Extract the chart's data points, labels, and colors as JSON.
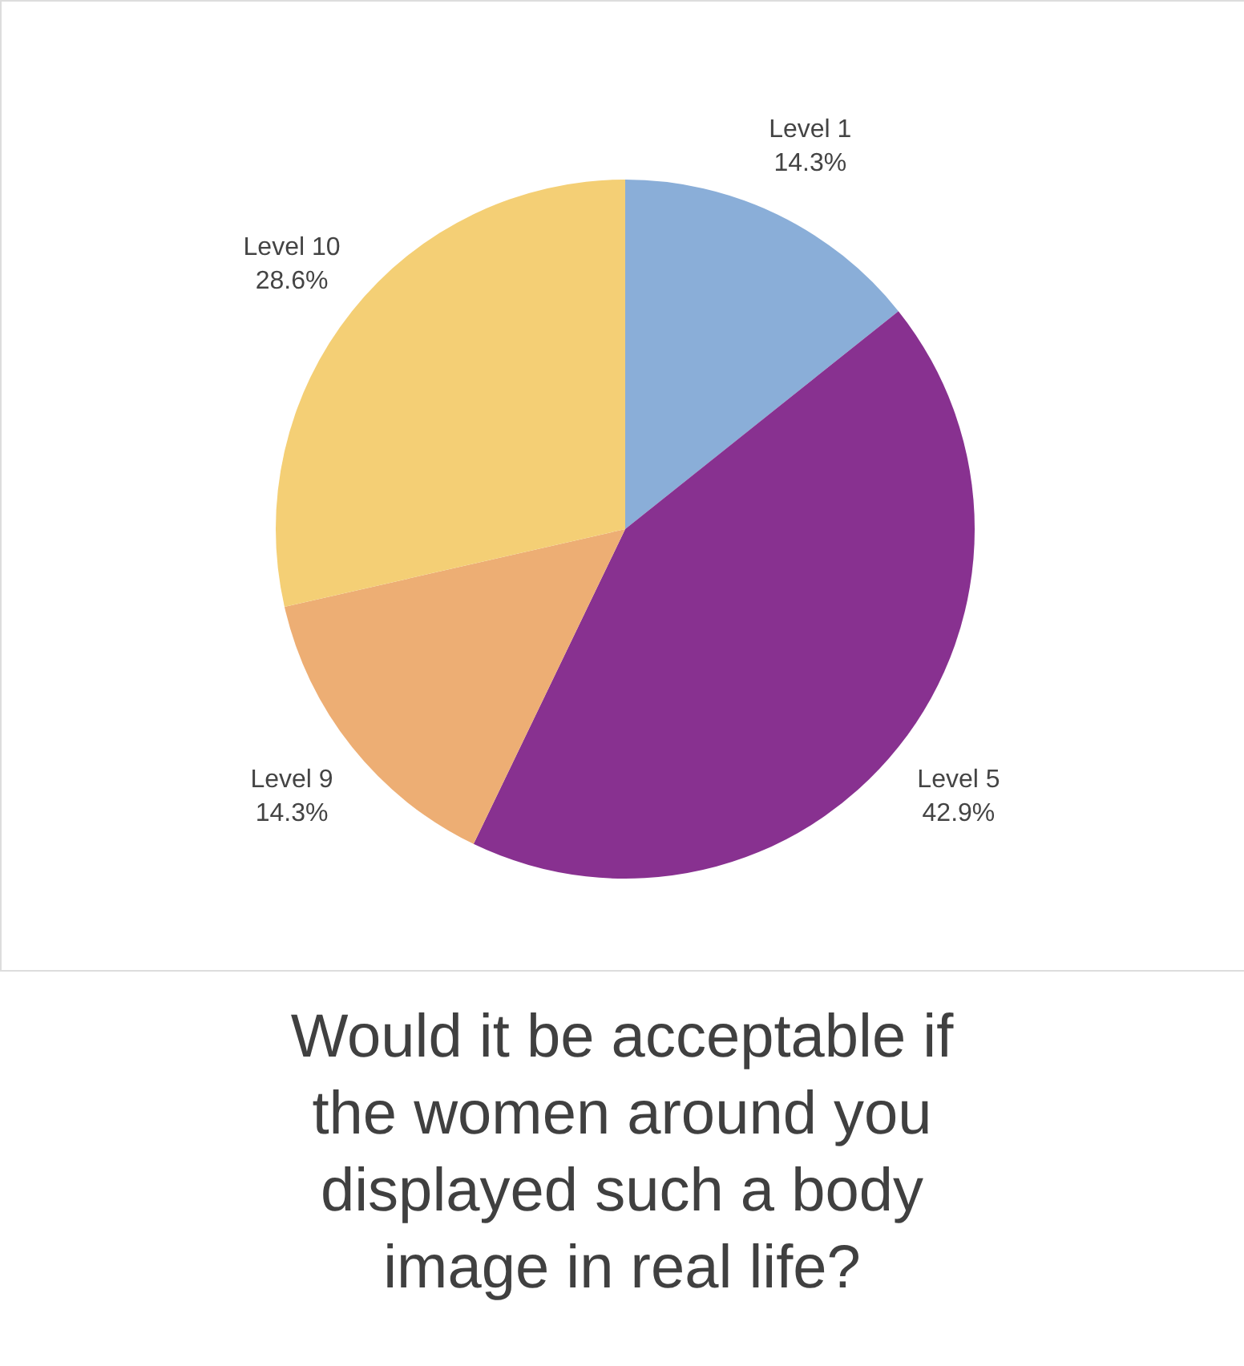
{
  "chart_data": {
    "type": "pie",
    "title": "Would it be acceptable if the women around you displayed such a body image in real life?",
    "categories": [
      "Level 1",
      "Level 5",
      "Level 9",
      "Level 10"
    ],
    "values": [
      14.3,
      42.9,
      14.3,
      28.6
    ],
    "colors": [
      "#8aaed8",
      "#883190",
      "#edae74",
      "#f4cf75"
    ],
    "value_labels": [
      "14.3%",
      "42.9%",
      "14.3%",
      "28.6%"
    ]
  }
}
